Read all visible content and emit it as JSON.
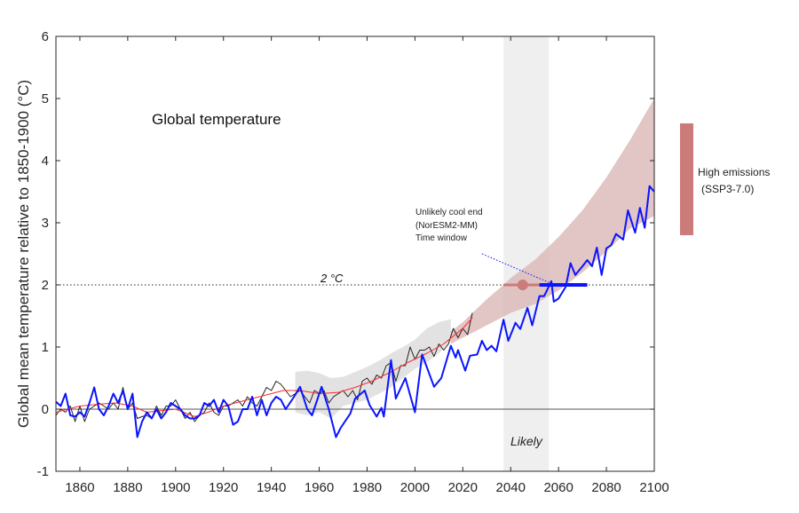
{
  "chart_data": {
    "type": "line",
    "title": "Global temperature",
    "xlabel": "",
    "ylabel": "Global mean temperature relative to 1850-1900 (°C)",
    "xlim": [
      1850,
      2100
    ],
    "ylim": [
      -1,
      6
    ],
    "xticks": [
      "1860",
      "1880",
      "1900",
      "1920",
      "1940",
      "1960",
      "1980",
      "2000",
      "2020",
      "2040",
      "2060",
      "2080",
      "2100"
    ],
    "yticks": [
      "-1",
      "0",
      "1",
      "2",
      "3",
      "4",
      "5",
      "6"
    ],
    "grid": false,
    "colors": {
      "observed": "#222222",
      "smooth": "#ff2a2a",
      "model": "#0a14ff",
      "envelope": "#dbb6b6",
      "obs_band": "#e2e2e2",
      "likely_band": "#efefef",
      "marker": "#cc7b7b"
    },
    "threshold": {
      "value": 2,
      "label": "2 °C"
    },
    "likely_window": {
      "from": 2037,
      "to": 2056,
      "label": "Likely"
    },
    "central_estimate": {
      "year": 2045,
      "value": 2,
      "range": [
        2037,
        2052
      ]
    },
    "cool_end_window": {
      "from": 2052,
      "to": 2072,
      "value": 2
    },
    "annotation": [
      "Unlikely cool end",
      "(NorESM2-MM)",
      "Time window"
    ],
    "legend": {
      "label_line1": "High emissions",
      "label_line2": "(SSP3-7.0)",
      "range": [
        2.8,
        4.6
      ]
    },
    "envelope": {
      "years": [
        2015,
        2020,
        2030,
        2037,
        2040,
        2050,
        2060,
        2070,
        2080,
        2090,
        2100
      ],
      "lower": [
        1.05,
        1.15,
        1.35,
        1.49,
        1.55,
        1.69,
        1.91,
        2.2,
        2.54,
        2.91,
        3.11
      ],
      "upper": [
        1.25,
        1.4,
        1.77,
        2.0,
        2.11,
        2.4,
        2.77,
        3.2,
        3.73,
        4.34,
        5.0
      ]
    },
    "obs_band": {
      "years": [
        1950,
        1955,
        1960,
        1965,
        1970,
        1975,
        1980,
        1985,
        1990,
        1995,
        2000,
        2005,
        2010,
        2015
      ],
      "lower": [
        -0.05,
        -0.1,
        -0.05,
        -0.15,
        0.05,
        0.1,
        0.15,
        0.25,
        0.35,
        0.5,
        0.65,
        0.75,
        0.9,
        1.1
      ],
      "upper": [
        0.6,
        0.62,
        0.58,
        0.5,
        0.52,
        0.6,
        0.68,
        0.78,
        0.9,
        1.0,
        1.12,
        1.3,
        1.4,
        1.45
      ]
    },
    "series": [
      {
        "key": "observed",
        "x": [
          1850,
          1852,
          1854,
          1856,
          1858,
          1860,
          1862,
          1864,
          1866,
          1868,
          1870,
          1872,
          1874,
          1876,
          1878,
          1880,
          1882,
          1884,
          1886,
          1888,
          1890,
          1892,
          1894,
          1896,
          1898,
          1900,
          1902,
          1904,
          1906,
          1908,
          1910,
          1912,
          1914,
          1916,
          1918,
          1920,
          1922,
          1924,
          1926,
          1928,
          1930,
          1932,
          1934,
          1936,
          1938,
          1940,
          1942,
          1944,
          1946,
          1948,
          1950,
          1952,
          1954,
          1956,
          1958,
          1960,
          1962,
          1964,
          1966,
          1968,
          1970,
          1972,
          1974,
          1976,
          1978,
          1980,
          1982,
          1984,
          1986,
          1988,
          1990,
          1992,
          1994,
          1996,
          1998,
          2000,
          2002,
          2004,
          2006,
          2008,
          2010,
          2012,
          2014,
          2016,
          2018,
          2020,
          2022,
          2024
        ],
        "y": [
          -0.1,
          0.0,
          -0.05,
          0.05,
          -0.2,
          0.05,
          -0.2,
          0.0,
          0.05,
          0.1,
          0.05,
          0.0,
          0.1,
          0.0,
          0.35,
          0.0,
          0.1,
          -0.15,
          -0.12,
          -0.1,
          -0.15,
          0.05,
          -0.1,
          0.05,
          0.05,
          0.15,
          0.0,
          -0.15,
          -0.05,
          -0.2,
          -0.1,
          -0.05,
          0.1,
          -0.05,
          -0.1,
          0.05,
          0.05,
          0.1,
          0.15,
          0.05,
          0.2,
          0.1,
          0.05,
          0.2,
          0.35,
          0.3,
          0.45,
          0.4,
          0.3,
          0.2,
          0.25,
          0.3,
          0.2,
          0.1,
          0.3,
          0.25,
          0.3,
          0.1,
          0.2,
          0.25,
          0.3,
          0.2,
          0.3,
          0.15,
          0.45,
          0.5,
          0.4,
          0.55,
          0.5,
          0.7,
          0.75,
          0.45,
          0.7,
          0.7,
          1.0,
          0.8,
          0.95,
          0.95,
          1.0,
          0.85,
          1.05,
          0.95,
          1.05,
          1.3,
          1.15,
          1.3,
          1.2,
          1.55
        ]
      },
      {
        "key": "smooth",
        "x": [
          1850,
          1860,
          1868,
          1875,
          1882,
          1888,
          1895,
          1900,
          1908,
          1915,
          1920,
          1930,
          1937,
          1945,
          1952,
          1960,
          1968,
          1975,
          1982,
          1990,
          1997,
          2005,
          2012,
          2020,
          2024
        ],
        "y": [
          -0.05,
          0.05,
          0.08,
          0.1,
          0.05,
          -0.05,
          -0.02,
          0.0,
          -0.12,
          -0.03,
          0.05,
          0.15,
          0.22,
          0.3,
          0.3,
          0.25,
          0.27,
          0.35,
          0.45,
          0.6,
          0.75,
          0.9,
          1.05,
          1.3,
          1.47
        ]
      },
      {
        "key": "model",
        "x": [
          1850,
          1852,
          1854,
          1856,
          1858,
          1860,
          1862,
          1864,
          1866,
          1868,
          1870,
          1872,
          1874,
          1876,
          1878,
          1880,
          1882,
          1884,
          1886,
          1888,
          1890,
          1892,
          1894,
          1896,
          1898,
          1900,
          1902,
          1904,
          1906,
          1908,
          1910,
          1912,
          1914,
          1916,
          1918,
          1920,
          1922,
          1924,
          1926,
          1928,
          1930,
          1932,
          1934,
          1936,
          1938,
          1940,
          1942,
          1944,
          1946,
          1949,
          1952,
          1955,
          1957,
          1961,
          1964,
          1967,
          1969,
          1973,
          1975,
          1979,
          1981,
          1984,
          1986,
          1987,
          1990,
          1992,
          1996,
          2000,
          2003,
          2008,
          2011,
          2015,
          2017,
          2018,
          2021,
          2023,
          2026,
          2028,
          2030,
          2032,
          2034,
          2037,
          2039,
          2042,
          2044,
          2047,
          2049,
          2052,
          2054,
          2057,
          2058,
          2060,
          2063,
          2065,
          2067,
          2070,
          2072,
          2074,
          2076,
          2078,
          2080,
          2082,
          2084,
          2087,
          2089,
          2092,
          2094,
          2096,
          2098,
          2100
        ],
        "y": [
          0.12,
          0.05,
          0.25,
          -0.1,
          -0.12,
          -0.05,
          -0.12,
          0.1,
          0.35,
          0.0,
          -0.1,
          0.05,
          0.25,
          0.1,
          0.3,
          0.0,
          0.25,
          -0.45,
          -0.2,
          -0.05,
          -0.15,
          0.0,
          -0.15,
          -0.05,
          0.1,
          0.05,
          0.0,
          -0.1,
          -0.15,
          -0.15,
          -0.1,
          0.1,
          0.05,
          0.15,
          -0.05,
          0.15,
          0.05,
          -0.25,
          -0.2,
          0.0,
          0.0,
          0.2,
          -0.1,
          0.15,
          -0.1,
          0.1,
          0.2,
          0.15,
          0.0,
          0.17,
          0.36,
          0.0,
          -0.1,
          0.36,
          0.0,
          -0.45,
          -0.3,
          -0.07,
          0.17,
          0.3,
          0.07,
          -0.12,
          0.02,
          -0.12,
          0.79,
          0.17,
          0.5,
          -0.05,
          0.88,
          0.36,
          0.5,
          1.02,
          0.83,
          0.95,
          0.62,
          0.86,
          0.88,
          1.1,
          0.95,
          1.02,
          0.93,
          1.44,
          1.1,
          1.39,
          1.29,
          1.63,
          1.35,
          1.82,
          1.82,
          2.06,
          1.73,
          1.78,
          1.97,
          2.35,
          2.16,
          2.3,
          2.4,
          2.3,
          2.6,
          2.16,
          2.59,
          2.64,
          2.82,
          2.73,
          3.2,
          2.84,
          3.24,
          2.92,
          3.59,
          3.5
        ]
      }
    ]
  }
}
